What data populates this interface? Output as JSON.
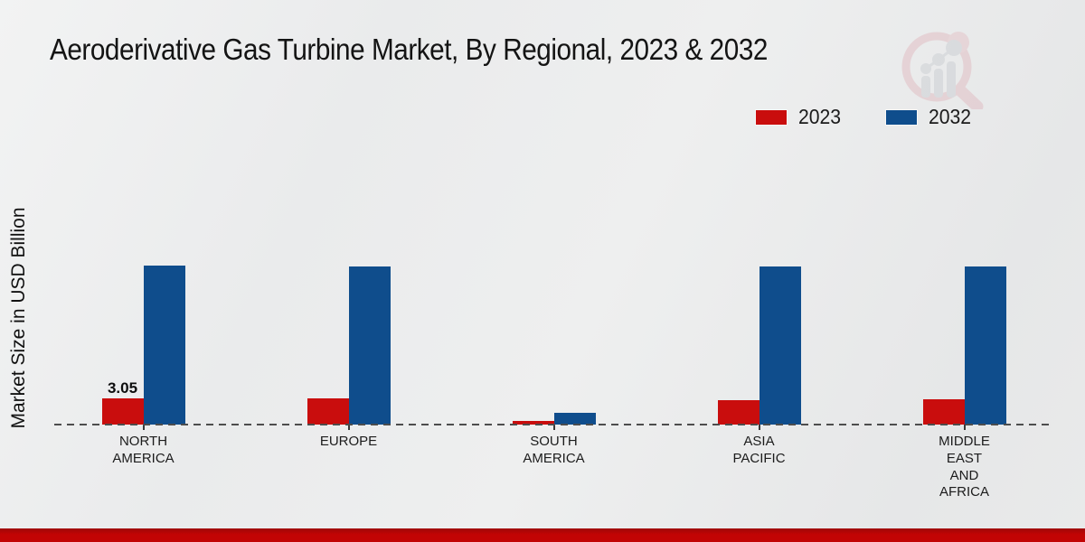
{
  "header": {
    "title": "Aeroderivative Gas Turbine Market, By Regional, 2023 & 2032"
  },
  "watermark": {
    "name": "market-research-future-logo"
  },
  "legend": {
    "items": [
      {
        "label": "2023",
        "color": "#c90d0d"
      },
      {
        "label": "2032",
        "color": "#0f4d8c"
      }
    ]
  },
  "y_axis": {
    "label": "Market Size in USD Billion"
  },
  "chart_data": {
    "type": "bar",
    "title": "Aeroderivative Gas Turbine Market, By Regional, 2023 & 2032",
    "categories": [
      "NORTH\nAMERICA",
      "EUROPE",
      "SOUTH\nAMERICA",
      "ASIA\nPACIFIC",
      "MIDDLE\nEAST\nAND\nAFRICA"
    ],
    "series": [
      {
        "name": "2023",
        "color": "#c90d0d",
        "values": [
          3.05,
          3.1,
          0.4,
          2.9,
          2.95
        ]
      },
      {
        "name": "2032",
        "color": "#0f4d8c",
        "values": [
          18.7,
          18.6,
          1.4,
          18.6,
          18.6
        ]
      }
    ],
    "data_labels": [
      {
        "series": "2023",
        "category_index": 0,
        "text": "3.05"
      }
    ],
    "xlabel": "",
    "ylabel": "Market Size in USD Billion",
    "ylim": [
      0,
      35
    ],
    "grid": false,
    "legend_position": "top-right",
    "baseline_style": "dashed"
  },
  "footer": {
    "bar_color": "#c20404"
  }
}
